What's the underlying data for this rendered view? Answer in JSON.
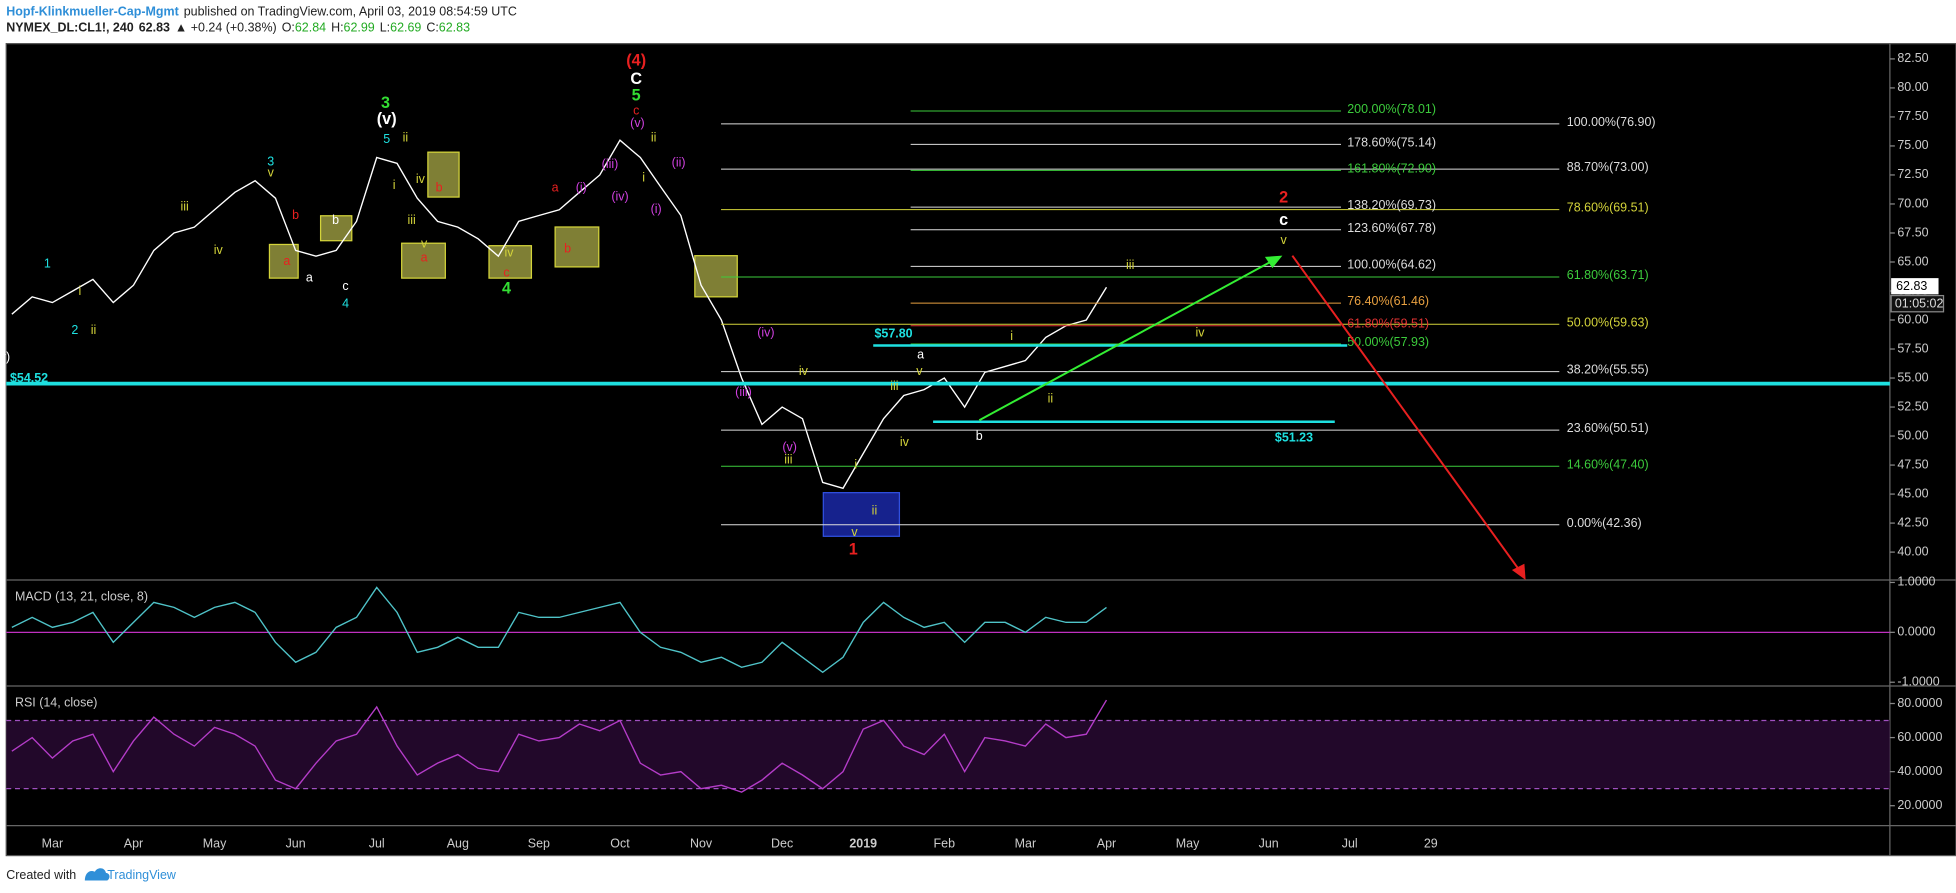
{
  "header": {
    "author": "Hopf-Klinkmueller-Cap-Mgmt",
    "published": "published on TradingView.com, April 03, 2019 08:54:59 UTC",
    "symbol": "NYMEX_DL:CL1!, 240",
    "last": "62.83",
    "change": "▲ +0.24 (+0.38%)",
    "open_label": "O:",
    "open": "62.84",
    "high_label": "H:",
    "high": "62.99",
    "low_label": "L:",
    "low": "62.69",
    "close_label": "C:",
    "close": "62.83"
  },
  "price_tag": "62.83",
  "countdown": "01:05:02",
  "chart_data": [
    {
      "type": "line",
      "color": "#ffffff",
      "categories": [
        null,
        null,
        "Mar",
        null,
        null,
        null,
        "Apr",
        null,
        null,
        null,
        "May",
        null,
        null,
        null,
        "Jun",
        null,
        null,
        null,
        "Jul",
        null,
        null,
        null,
        "Aug",
        null,
        null,
        null,
        "Sep",
        null,
        null,
        null,
        "Oct",
        null,
        null,
        null,
        "Nov",
        null,
        null,
        null,
        "Dec",
        null,
        null,
        null,
        "2019",
        null,
        null,
        null,
        "Feb",
        null,
        null,
        null,
        "Mar",
        null,
        null,
        null,
        "Apr",
        null,
        null,
        null,
        "May",
        null,
        null,
        null,
        "Jun",
        null,
        null,
        null,
        "Jul",
        null,
        null,
        null,
        "29",
        null
      ],
      "values": [
        60.5,
        62.0,
        61.5,
        62.5,
        63.5,
        61.5,
        63.0,
        66.0,
        67.5,
        68.0,
        69.5,
        71.0,
        72.0,
        70.5,
        66.0,
        65.5,
        66.0,
        68.5,
        74.0,
        73.5,
        70.5,
        68.5,
        68.0,
        67.0,
        65.5,
        68.5,
        69.0,
        69.5,
        71.0,
        72.5,
        75.5,
        74.0,
        71.5,
        69.0,
        63.0,
        60.0,
        55.0,
        51.0,
        52.5,
        51.5,
        46.0,
        45.5,
        48.5,
        51.5,
        53.5,
        54.0,
        55.0,
        52.5,
        55.5,
        56.0,
        56.5,
        58.5,
        59.5,
        60.0,
        62.83,
        null,
        null,
        null,
        null,
        null,
        null,
        null,
        null,
        null,
        null,
        null,
        null,
        null,
        null,
        null,
        null,
        null
      ],
      "ylim": [
        37.6,
        83.6
      ],
      "yticks": [
        {
          "value": 40,
          "label": "40.00"
        },
        {
          "value": 42.5,
          "label": "42.50"
        },
        {
          "value": 45,
          "label": "45.00"
        },
        {
          "value": 47.5,
          "label": "47.50"
        },
        {
          "value": 50,
          "label": "50.00"
        },
        {
          "value": 52.5,
          "label": "52.50"
        },
        {
          "value": 55,
          "label": "55.00"
        },
        {
          "value": 57.5,
          "label": "57.50"
        },
        {
          "value": 60,
          "label": "60.00"
        },
        {
          "value": 62.5,
          "label": "62.50"
        },
        {
          "value": 65,
          "label": "65.00"
        },
        {
          "value": 67.5,
          "label": "67.50"
        },
        {
          "value": 70,
          "label": "70.00"
        },
        {
          "value": 72.5,
          "label": "72.50"
        },
        {
          "value": 75,
          "label": "75.00"
        },
        {
          "value": 77.5,
          "label": "77.50"
        },
        {
          "value": 80,
          "label": "80.00"
        },
        {
          "value": 82.5,
          "label": "82.50"
        }
      ]
    },
    {
      "type": "line",
      "title": "MACD (13, 21, close, 8)",
      "color": "#4fc3c8",
      "values": [
        0.1,
        0.3,
        0.1,
        0.2,
        0.4,
        -0.2,
        0.2,
        0.6,
        0.5,
        0.3,
        0.5,
        0.6,
        0.4,
        -0.2,
        -0.6,
        -0.4,
        0.1,
        0.3,
        0.9,
        0.4,
        -0.4,
        -0.3,
        -0.1,
        -0.3,
        -0.3,
        0.4,
        0.3,
        0.3,
        0.4,
        0.5,
        0.6,
        0.0,
        -0.3,
        -0.4,
        -0.6,
        -0.5,
        -0.7,
        -0.6,
        -0.2,
        -0.5,
        -0.8,
        -0.5,
        0.2,
        0.6,
        0.3,
        0.1,
        0.2,
        -0.2,
        0.2,
        0.2,
        0.0,
        0.3,
        0.2,
        0.2,
        0.5
      ],
      "ylim": [
        -1.075,
        1.05
      ],
      "yticks": [
        {
          "value": -1,
          "label": "-1.0000"
        },
        {
          "value": 0,
          "label": "0.0000"
        },
        {
          "value": 1,
          "label": "1.0000"
        }
      ]
    },
    {
      "type": "line",
      "title": "RSI (14, close)",
      "color": "#b43cc8",
      "values": [
        52,
        60,
        48,
        58,
        62,
        40,
        58,
        72,
        62,
        55,
        66,
        62,
        55,
        35,
        30,
        45,
        58,
        62,
        78,
        55,
        38,
        45,
        50,
        42,
        40,
        62,
        58,
        60,
        68,
        64,
        70,
        45,
        38,
        40,
        30,
        32,
        28,
        35,
        45,
        38,
        30,
        40,
        65,
        70,
        55,
        50,
        62,
        40,
        60,
        58,
        55,
        68,
        60,
        62,
        82
      ],
      "ylim": [
        8.3,
        90.3
      ],
      "bands": [
        30,
        70
      ],
      "yticks": [
        {
          "value": 20,
          "label": "20.0000"
        },
        {
          "value": 40,
          "label": "40.0000"
        },
        {
          "value": 60,
          "label": "60.0000"
        },
        {
          "value": 80,
          "label": "80.0000"
        }
      ]
    }
  ],
  "fib_levels": [
    {
      "label": "100.00%(76.90)",
      "value": 76.9,
      "color": "#dddddd"
    },
    {
      "label": "88.70%(73.00)",
      "value": 73.0,
      "color": "#dddddd"
    },
    {
      "label": "78.60%(69.51)",
      "value": 69.51,
      "color": "#d4d43a"
    },
    {
      "label": "61.80%(63.71)",
      "value": 63.71,
      "color": "#3ccc3c"
    },
    {
      "label": "50.00%(59.63)",
      "value": 59.63,
      "color": "#d4d43a"
    },
    {
      "label": "38.20%(55.55)",
      "value": 55.55,
      "color": "#dddddd"
    },
    {
      "label": "23.60%(50.51)",
      "value": 50.51,
      "color": "#dddddd"
    },
    {
      "label": "14.60%(47.40)",
      "value": 47.4,
      "color": "#3ccc3c"
    },
    {
      "label": "0.00%(42.36)",
      "value": 42.36,
      "color": "#dddddd"
    }
  ],
  "ext_levels": [
    {
      "label": "200.00%(78.01)",
      "value": 78.01,
      "color": "#3ccc3c"
    },
    {
      "label": "178.60%(75.14)",
      "value": 75.14,
      "color": "#dddddd"
    },
    {
      "label": "161.80%(72.90)",
      "value": 72.9,
      "color": "#3ccc3c"
    },
    {
      "label": "138.20%(69.73)",
      "value": 69.73,
      "color": "#dddddd"
    },
    {
      "label": "123.60%(67.78)",
      "value": 67.78,
      "color": "#dddddd"
    },
    {
      "label": "100.00%(64.62)",
      "value": 64.62,
      "color": "#dddddd"
    },
    {
      "label": "76.40%(61.46)",
      "value": 61.46,
      "color": "#e8a040"
    },
    {
      "label": "61.80%(59.51)",
      "value": 59.51,
      "color": "#e33333"
    },
    {
      "label": "50.00%(57.93)",
      "value": 57.93,
      "color": "#3ccc3c"
    }
  ],
  "price_levels": [
    {
      "label": "$54.52",
      "value": 54.52,
      "color": "#1ee0e0"
    },
    {
      "label": "$57.80",
      "value": 57.8,
      "color": "#1ee0e0"
    },
    {
      "label": "$51.23",
      "value": 51.23,
      "color": "#1ee0e0"
    }
  ],
  "wave_labels": [
    "v)",
    "1",
    "i",
    "2",
    "ii",
    "iii",
    "iv",
    "3",
    "v",
    "b",
    "a",
    "a",
    "b",
    "c",
    "4",
    "3",
    "(v)",
    "5",
    "ii",
    "i",
    "iv",
    "b",
    "iii",
    "v",
    "a",
    "iv",
    "c",
    "4",
    "a",
    "(i)",
    "b",
    "(iii)",
    "(iv)",
    "(4)",
    "C",
    "5",
    "c",
    "(v)",
    "ii",
    "i",
    "(ii)",
    "(i)",
    "(iv)",
    "(iii)",
    "iv",
    "(v)",
    "iii",
    "i",
    "ii",
    "v",
    "1",
    "iii",
    "a",
    "v",
    "iv",
    "b",
    "i",
    "ii",
    "iii",
    "iv",
    "2",
    "c",
    "v"
  ],
  "footer": {
    "created": "Created with",
    "brand": "TradingView"
  }
}
